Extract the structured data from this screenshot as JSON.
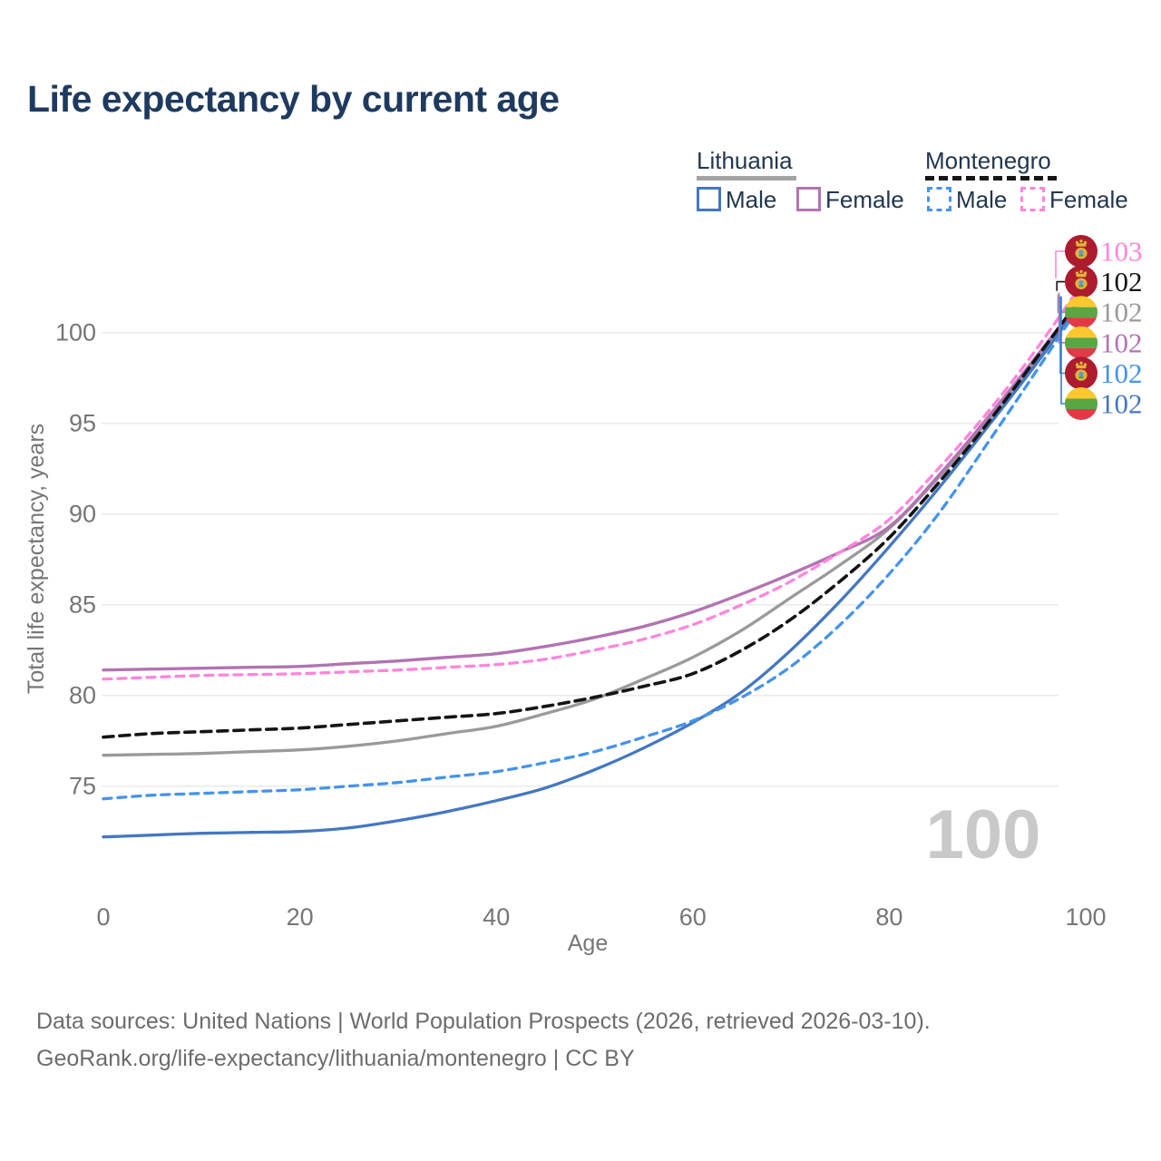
{
  "title": "Life expectancy by current age",
  "legend": {
    "groups": [
      {
        "country": "Lithuania",
        "line_style": "solid",
        "items": [
          {
            "label": "Male",
            "color": "#4477C0"
          },
          {
            "label": "Female",
            "color": "#B273B2"
          }
        ]
      },
      {
        "country": "Montenegro",
        "line_style": "dashed",
        "items": [
          {
            "label": "Male",
            "color": "#4593EA"
          },
          {
            "label": "Female",
            "color": "#FF85DC"
          }
        ]
      }
    ]
  },
  "watermark_age": "100",
  "footer": {
    "line1": "Data sources: United Nations | World Population Prospects (2026, retrieved 2026-03-10).",
    "line2": "GeoRank.org/life-expectancy/lithuania/montenegro | CC BY"
  },
  "chart_data": {
    "type": "line",
    "title": "Life expectancy by current age",
    "xlabel": "Age",
    "ylabel": "Total life expectancy, years",
    "xlim": [
      0,
      100
    ],
    "ylim": [
      71.5,
      104
    ],
    "xticks": [
      0,
      20,
      40,
      60,
      80,
      100
    ],
    "yticks": [
      75,
      80,
      85,
      90,
      95,
      100
    ],
    "grid": true,
    "legend_position": "top-right",
    "x": [
      0,
      5,
      10,
      15,
      20,
      25,
      30,
      35,
      40,
      45,
      50,
      55,
      60,
      65,
      70,
      75,
      80,
      85,
      90,
      95,
      100
    ],
    "series": [
      {
        "name": "Lithuania Male",
        "country": "lithuania",
        "sex": "male",
        "style": "solid",
        "color": "#4477C0",
        "width": 3.3,
        "values": [
          72.2,
          72.3,
          72.4,
          72.45,
          72.5,
          72.7,
          73.1,
          73.6,
          74.2,
          74.9,
          75.9,
          77.1,
          78.5,
          80.2,
          82.5,
          85.2,
          88.2,
          91.4,
          94.8,
          98.3,
          102.0
        ]
      },
      {
        "name": "Lithuania Female",
        "country": "lithuania",
        "sex": "female",
        "style": "solid",
        "color": "#B273B2",
        "width": 3.4,
        "values": [
          81.4,
          81.45,
          81.5,
          81.55,
          81.6,
          81.75,
          81.9,
          82.1,
          82.3,
          82.7,
          83.2,
          83.8,
          84.6,
          85.6,
          86.7,
          87.9,
          89.3,
          92.1,
          95.3,
          98.7,
          102.2
        ]
      },
      {
        "name": "Lithuania Both sexes",
        "country": "lithuania",
        "sex": "both",
        "style": "solid",
        "color": "#9A9A9A",
        "width": 3.3,
        "values": [
          76.7,
          76.75,
          76.8,
          76.9,
          77.0,
          77.2,
          77.5,
          77.9,
          78.3,
          79.0,
          79.8,
          80.9,
          82.1,
          83.6,
          85.4,
          87.2,
          89.2,
          92.0,
          95.1,
          98.5,
          102.1
        ]
      },
      {
        "name": "Montenegro Male",
        "country": "montenegro",
        "sex": "male",
        "style": "dashed",
        "color": "#4593EA",
        "width": 3.3,
        "values": [
          74.3,
          74.5,
          74.6,
          74.7,
          74.8,
          75.0,
          75.2,
          75.5,
          75.8,
          76.3,
          76.9,
          77.7,
          78.6,
          79.9,
          81.6,
          83.9,
          86.7,
          90.0,
          93.9,
          97.9,
          102.0
        ]
      },
      {
        "name": "Montenegro Female",
        "country": "montenegro",
        "sex": "female",
        "style": "dashed",
        "color": "#FF85DC",
        "width": 3.3,
        "values": [
          80.9,
          81.0,
          81.1,
          81.15,
          81.2,
          81.3,
          81.4,
          81.55,
          81.7,
          82.0,
          82.5,
          83.1,
          83.9,
          85.0,
          86.3,
          87.9,
          89.7,
          92.5,
          95.6,
          99.1,
          103.0
        ]
      },
      {
        "name": "Montenegro Both sexes",
        "country": "montenegro",
        "sex": "both",
        "style": "dashed",
        "color": "#141414",
        "width": 3.6,
        "values": [
          77.7,
          77.9,
          78.0,
          78.1,
          78.2,
          78.4,
          78.6,
          78.8,
          79.0,
          79.4,
          79.9,
          80.5,
          81.2,
          82.5,
          84.2,
          86.3,
          88.7,
          91.7,
          95.0,
          98.6,
          102.3
        ]
      }
    ],
    "end_labels": [
      {
        "value": "103",
        "flag": "montenegro",
        "color": "#FF85DC",
        "series": 4
      },
      {
        "value": "102",
        "flag": "montenegro",
        "color": "#141414",
        "series": 5
      },
      {
        "value": "102",
        "flag": "lithuania",
        "color": "#9A9A9A",
        "series": 2
      },
      {
        "value": "102",
        "flag": "lithuania",
        "color": "#B273B2",
        "series": 1
      },
      {
        "value": "102",
        "flag": "montenegro",
        "color": "#4593EA",
        "series": 3
      },
      {
        "value": "102",
        "flag": "lithuania",
        "color": "#4477C0",
        "series": 0
      }
    ]
  }
}
